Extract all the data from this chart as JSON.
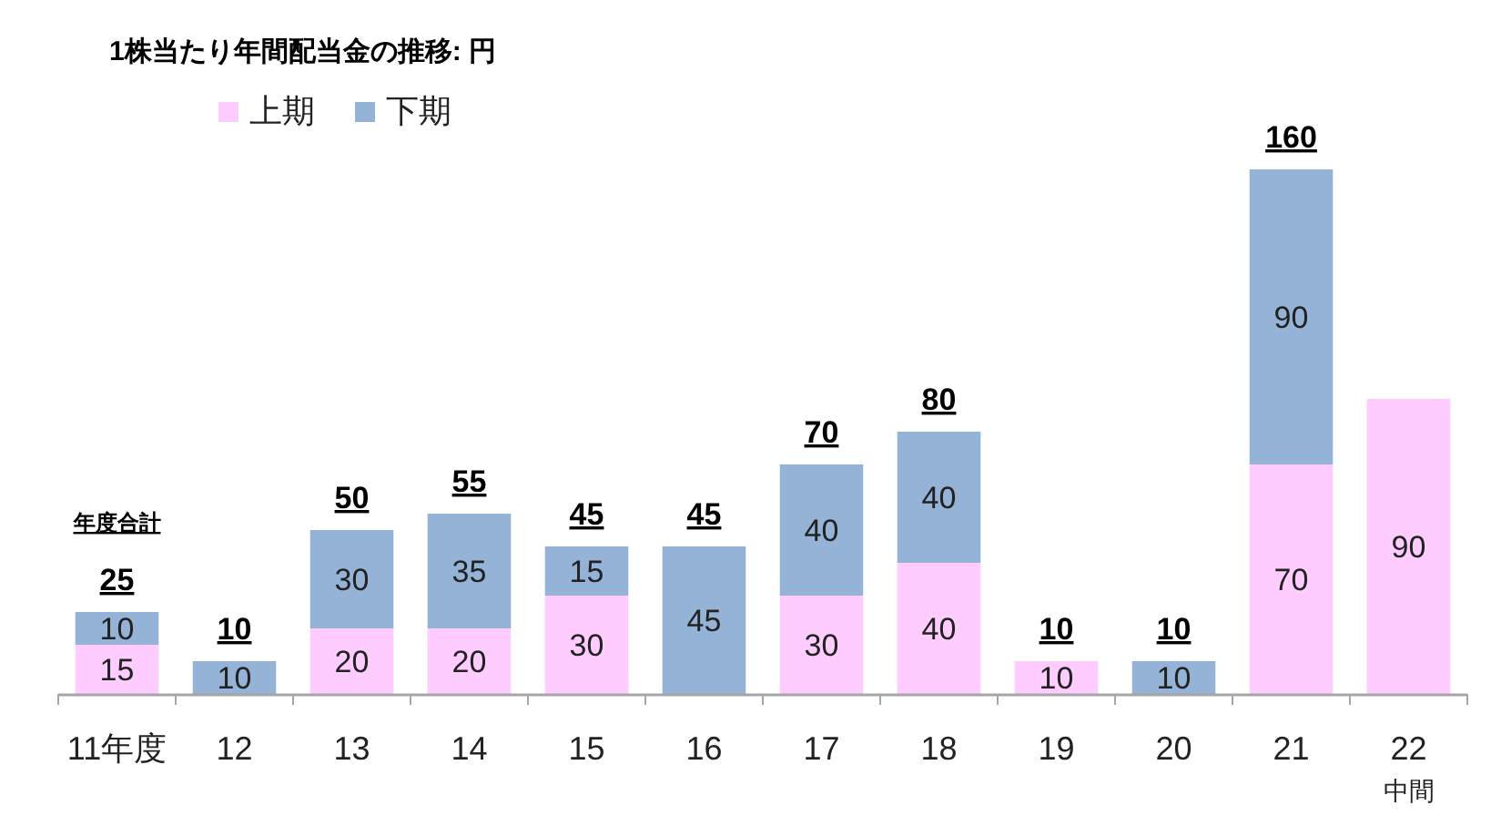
{
  "chart_data": {
    "type": "bar",
    "stacked": true,
    "title": "1株当たり年間配当金の推移: 円",
    "categories": [
      "11年度",
      "12",
      "13",
      "14",
      "15",
      "16",
      "17",
      "18",
      "19",
      "20",
      "21",
      "22\n中間"
    ],
    "series": [
      {
        "name": "上期",
        "color": "#ffccff",
        "values": [
          15,
          null,
          20,
          20,
          30,
          null,
          30,
          40,
          10,
          null,
          70,
          90
        ]
      },
      {
        "name": "下期",
        "color": "#95b3d7",
        "values": [
          10,
          10,
          30,
          35,
          15,
          45,
          40,
          40,
          null,
          10,
          90,
          null
        ]
      }
    ],
    "totals": [
      "25",
      "10",
      "50",
      "55",
      "45",
      "45",
      "70",
      "80",
      "10",
      "10",
      "160",
      null
    ],
    "annotations": [
      "年度合計"
    ],
    "data_labels": true,
    "legend": "top left"
  }
}
